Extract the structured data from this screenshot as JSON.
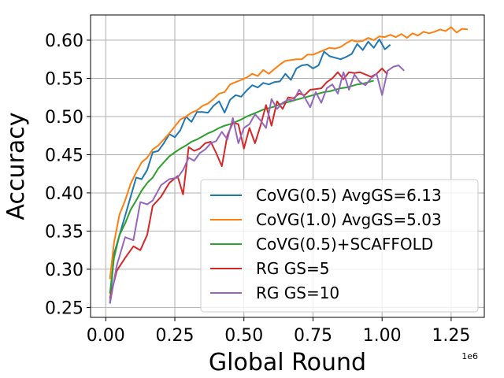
{
  "chart_data": {
    "type": "line",
    "xlabel": "Global Round",
    "ylabel": "Accuracy",
    "x_offset_label": "1e6",
    "xlim": [
      -0.055,
      1.37
    ],
    "ylim": [
      0.237,
      0.633
    ],
    "xticks": [
      0.0,
      0.25,
      0.5,
      0.75,
      1.0,
      1.25
    ],
    "xtick_labels": [
      "0.00",
      "0.25",
      "0.50",
      "0.75",
      "1.00",
      "1.25"
    ],
    "yticks": [
      0.25,
      0.3,
      0.35,
      0.4,
      0.45,
      0.5,
      0.55,
      0.6
    ],
    "ytick_labels": [
      "0.25",
      "0.30",
      "0.35",
      "0.40",
      "0.45",
      "0.50",
      "0.55",
      "0.60"
    ],
    "grid": true,
    "legend_position": "lower-right",
    "series": [
      {
        "name": "CoVG(0.5) AvgGS=6.13",
        "color": "#1f77b4",
        "x": [
          0.015,
          0.03,
          0.05,
          0.07,
          0.09,
          0.11,
          0.13,
          0.15,
          0.17,
          0.19,
          0.21,
          0.23,
          0.25,
          0.27,
          0.29,
          0.31,
          0.33,
          0.35,
          0.37,
          0.39,
          0.41,
          0.43,
          0.45,
          0.47,
          0.49,
          0.51,
          0.53,
          0.55,
          0.57,
          0.59,
          0.61,
          0.63,
          0.65,
          0.67,
          0.69,
          0.71,
          0.73,
          0.75,
          0.77,
          0.79,
          0.81,
          0.83,
          0.85,
          0.87,
          0.89,
          0.91,
          0.93,
          0.95,
          0.97,
          0.99,
          1.01,
          1.03
        ],
        "y": [
          0.255,
          0.32,
          0.345,
          0.37,
          0.395,
          0.42,
          0.418,
          0.43,
          0.453,
          0.455,
          0.465,
          0.477,
          0.473,
          0.482,
          0.5,
          0.493,
          0.506,
          0.506,
          0.505,
          0.514,
          0.52,
          0.505,
          0.522,
          0.528,
          0.526,
          0.534,
          0.541,
          0.538,
          0.544,
          0.542,
          0.545,
          0.546,
          0.556,
          0.548,
          0.563,
          0.567,
          0.568,
          0.563,
          0.567,
          0.585,
          0.579,
          0.577,
          0.575,
          0.578,
          0.582,
          0.595,
          0.587,
          0.598,
          0.59,
          0.601,
          0.588,
          0.594
        ]
      },
      {
        "name": "CoVG(1.0) AvgGS=5.03",
        "color": "#ff7f0e",
        "x": [
          0.015,
          0.03,
          0.05,
          0.07,
          0.09,
          0.11,
          0.13,
          0.15,
          0.17,
          0.19,
          0.21,
          0.23,
          0.25,
          0.27,
          0.29,
          0.31,
          0.33,
          0.35,
          0.37,
          0.39,
          0.41,
          0.43,
          0.45,
          0.47,
          0.49,
          0.51,
          0.53,
          0.55,
          0.57,
          0.59,
          0.61,
          0.63,
          0.65,
          0.67,
          0.69,
          0.71,
          0.73,
          0.75,
          0.77,
          0.79,
          0.81,
          0.83,
          0.85,
          0.87,
          0.89,
          0.91,
          0.93,
          0.95,
          0.97,
          0.99,
          1.01,
          1.03,
          1.05,
          1.07,
          1.09,
          1.11,
          1.13,
          1.15,
          1.17,
          1.19,
          1.21,
          1.23,
          1.25,
          1.27,
          1.29,
          1.31
        ],
        "y": [
          0.287,
          0.335,
          0.372,
          0.39,
          0.412,
          0.427,
          0.44,
          0.446,
          0.457,
          0.462,
          0.47,
          0.478,
          0.487,
          0.496,
          0.5,
          0.505,
          0.508,
          0.514,
          0.517,
          0.523,
          0.53,
          0.532,
          0.542,
          0.545,
          0.548,
          0.551,
          0.556,
          0.553,
          0.561,
          0.556,
          0.562,
          0.568,
          0.573,
          0.574,
          0.575,
          0.575,
          0.581,
          0.581,
          0.584,
          0.587,
          0.59,
          0.589,
          0.591,
          0.596,
          0.6,
          0.598,
          0.599,
          0.603,
          0.6,
          0.605,
          0.604,
          0.607,
          0.604,
          0.608,
          0.603,
          0.609,
          0.606,
          0.611,
          0.609,
          0.611,
          0.614,
          0.612,
          0.617,
          0.61,
          0.615,
          0.614
        ]
      },
      {
        "name": "CoVG(0.5)+SCAFFOLD",
        "color": "#2ca02c",
        "x": [
          0.015,
          0.03,
          0.05,
          0.07,
          0.09,
          0.11,
          0.13,
          0.15,
          0.17,
          0.19,
          0.21,
          0.23,
          0.25,
          0.27,
          0.29,
          0.31,
          0.33,
          0.35,
          0.37,
          0.39,
          0.41,
          0.43,
          0.45,
          0.47,
          0.49,
          0.51,
          0.53,
          0.55,
          0.57,
          0.59,
          0.61,
          0.63,
          0.65,
          0.67,
          0.69,
          0.71,
          0.73,
          0.75,
          0.77,
          0.79,
          0.81,
          0.83,
          0.85,
          0.87,
          0.89,
          0.91,
          0.93,
          0.95,
          0.97
        ],
        "y": [
          0.268,
          0.315,
          0.345,
          0.36,
          0.378,
          0.39,
          0.403,
          0.413,
          0.42,
          0.432,
          0.44,
          0.448,
          0.453,
          0.458,
          0.462,
          0.467,
          0.47,
          0.474,
          0.478,
          0.481,
          0.485,
          0.488,
          0.49,
          0.493,
          0.496,
          0.5,
          0.503,
          0.506,
          0.509,
          0.511,
          0.513,
          0.516,
          0.518,
          0.52,
          0.522,
          0.524,
          0.526,
          0.528,
          0.53,
          0.532,
          0.533,
          0.535,
          0.537,
          0.538,
          0.54,
          0.542,
          0.543,
          0.545,
          0.547
        ]
      },
      {
        "name": "RG GS=5",
        "color": "#d62728",
        "x": [
          0.015,
          0.04,
          0.07,
          0.1,
          0.125,
          0.15,
          0.17,
          0.2,
          0.23,
          0.26,
          0.28,
          0.3,
          0.32,
          0.34,
          0.36,
          0.38,
          0.4,
          0.42,
          0.44,
          0.46,
          0.48,
          0.5,
          0.52,
          0.54,
          0.56,
          0.58,
          0.6,
          0.62,
          0.64,
          0.66,
          0.68,
          0.7,
          0.72,
          0.74,
          0.76,
          0.78,
          0.8,
          0.82,
          0.84,
          0.86,
          0.88,
          0.9,
          0.92,
          0.94,
          0.96,
          0.98,
          1.0,
          1.02
        ],
        "y": [
          0.262,
          0.298,
          0.315,
          0.33,
          0.325,
          0.345,
          0.383,
          0.395,
          0.413,
          0.422,
          0.398,
          0.46,
          0.455,
          0.458,
          0.465,
          0.467,
          0.452,
          0.435,
          0.475,
          0.492,
          0.49,
          0.458,
          0.485,
          0.465,
          0.488,
          0.515,
          0.488,
          0.52,
          0.51,
          0.525,
          0.524,
          0.53,
          0.528,
          0.535,
          0.536,
          0.537,
          0.545,
          0.55,
          0.558,
          0.549,
          0.558,
          0.557,
          0.558,
          0.555,
          0.552,
          0.556,
          0.563,
          0.555
        ]
      },
      {
        "name": "RG GS=10",
        "color": "#9467bd",
        "x": [
          0.015,
          0.04,
          0.07,
          0.1,
          0.125,
          0.15,
          0.17,
          0.2,
          0.23,
          0.26,
          0.28,
          0.3,
          0.32,
          0.34,
          0.36,
          0.38,
          0.4,
          0.42,
          0.44,
          0.46,
          0.48,
          0.5,
          0.52,
          0.54,
          0.56,
          0.58,
          0.6,
          0.62,
          0.64,
          0.66,
          0.68,
          0.7,
          0.72,
          0.74,
          0.76,
          0.78,
          0.8,
          0.82,
          0.84,
          0.86,
          0.88,
          0.9,
          0.92,
          0.94,
          0.96,
          0.98,
          1.0,
          1.02,
          1.04,
          1.06,
          1.08
        ],
        "y": [
          0.255,
          0.305,
          0.342,
          0.338,
          0.388,
          0.385,
          0.39,
          0.41,
          0.418,
          0.42,
          0.43,
          0.446,
          0.442,
          0.452,
          0.457,
          0.465,
          0.468,
          0.48,
          0.47,
          0.498,
          0.465,
          0.485,
          0.49,
          0.503,
          0.495,
          0.485,
          0.523,
          0.51,
          0.518,
          0.522,
          0.521,
          0.535,
          0.525,
          0.512,
          0.532,
          0.518,
          0.537,
          0.542,
          0.53,
          0.558,
          0.535,
          0.555,
          0.545,
          0.541,
          0.55,
          0.556,
          0.528,
          0.56,
          0.565,
          0.567,
          0.56
        ]
      }
    ]
  }
}
